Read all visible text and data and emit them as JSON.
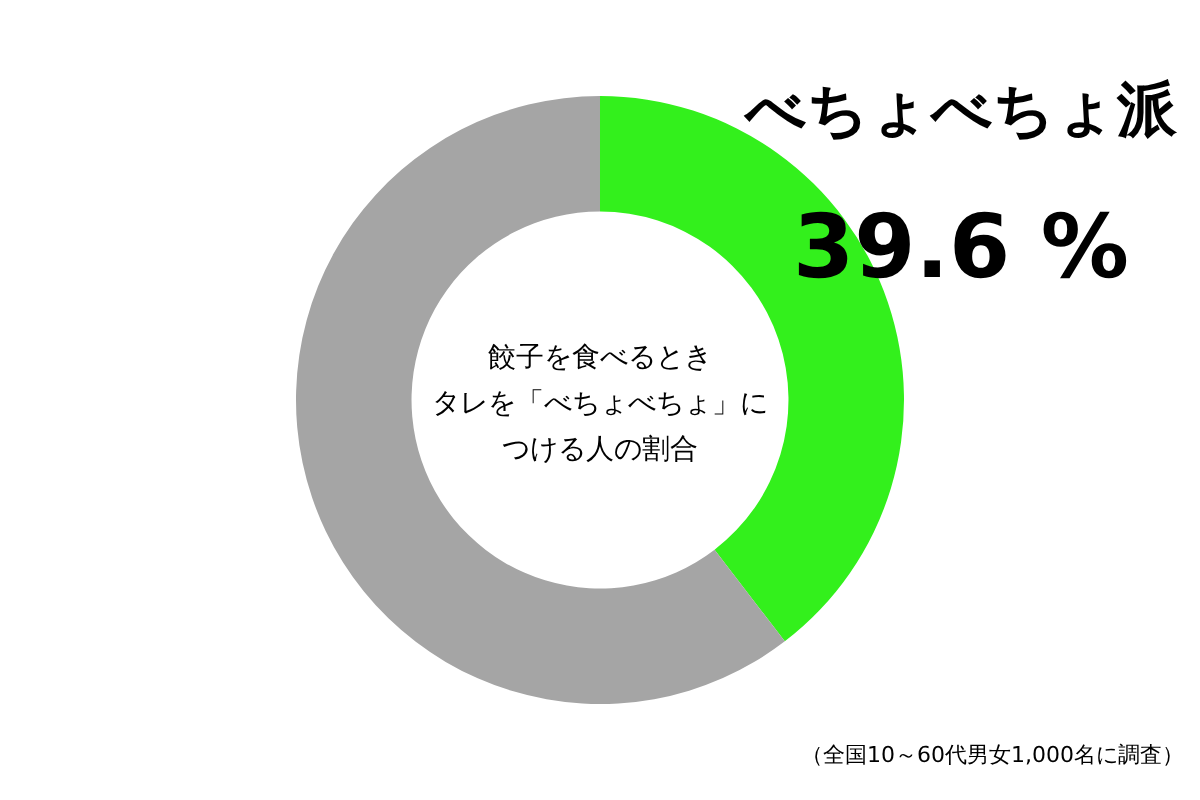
{
  "chart_data": {
    "type": "donut",
    "title": "餃子を食べるときタレを「べちょべちょ」につける人の割合",
    "categories": [
      "べちょべちょ派",
      null
    ],
    "values": [
      39.6,
      60.4
    ],
    "colors": [
      "#33f01c",
      "#a5a5a5"
    ],
    "value_labels": [
      "39.6 %",
      null
    ],
    "legend": false,
    "annotations": [
      "（全国10～60代男女1,000名に調査）"
    ]
  }
}
